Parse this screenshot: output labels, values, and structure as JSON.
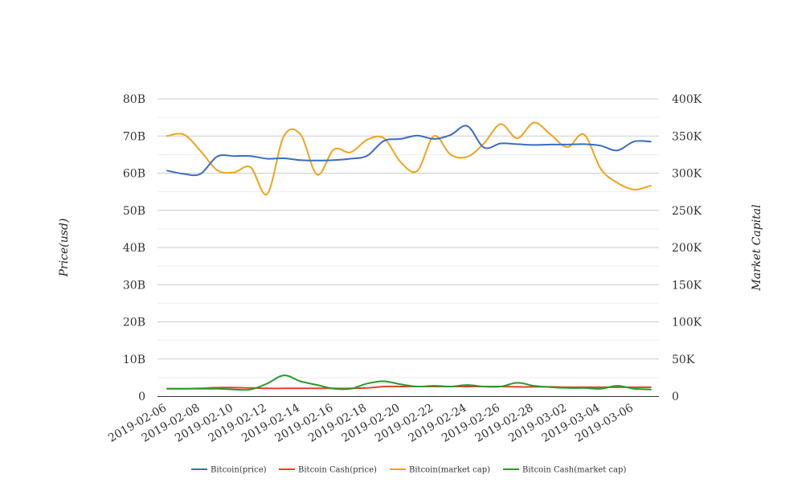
{
  "chart_data": {
    "type": "line",
    "smooth": true,
    "grid": true,
    "legend_position": "bottom",
    "y_left": {
      "label": "Price(usd)",
      "ticks": [
        "0",
        "10B",
        "20B",
        "30B",
        "40B",
        "50B",
        "60B",
        "70B",
        "80B"
      ],
      "range": [
        0,
        80
      ]
    },
    "y_right": {
      "label": "Market Capital",
      "ticks": [
        "0",
        "50K",
        "100K",
        "150K",
        "200K",
        "250K",
        "300K",
        "350K",
        "400K"
      ],
      "range": [
        0,
        400
      ]
    },
    "x_ticks": [
      "2019-02-06",
      "2019-02-08",
      "2019-02-10",
      "2019-02-12",
      "2019-02-14",
      "2019-02-16",
      "2019-02-18",
      "2019-02-20",
      "2019-02-22",
      "2019-02-24",
      "2019-02-26",
      "2019-02-28",
      "2019-03-02",
      "2019-03-04",
      "2019-03-06"
    ],
    "x": [
      "2019-02-06",
      "2019-02-07",
      "2019-02-08",
      "2019-02-09",
      "2019-02-10",
      "2019-02-11",
      "2019-02-12",
      "2019-02-13",
      "2019-02-14",
      "2019-02-15",
      "2019-02-16",
      "2019-02-17",
      "2019-02-18",
      "2019-02-19",
      "2019-02-20",
      "2019-02-21",
      "2019-02-22",
      "2019-02-23",
      "2019-02-24",
      "2019-02-25",
      "2019-02-26",
      "2019-02-27",
      "2019-02-28",
      "2019-03-01",
      "2019-03-02",
      "2019-03-03",
      "2019-03-04",
      "2019-03-05",
      "2019-03-06",
      "2019-03-07"
    ],
    "series": [
      {
        "name": "Bitcoin(price)",
        "axis": "left",
        "color": "#3b6cc2",
        "values": [
          60.7,
          59.8,
          59.8,
          64.5,
          64.6,
          64.6,
          63.9,
          64.0,
          63.5,
          63.4,
          63.5,
          63.9,
          64.7,
          68.7,
          69.2,
          70.1,
          69.2,
          70.3,
          72.7,
          66.9,
          68.0,
          67.8,
          67.6,
          67.7,
          67.7,
          67.8,
          67.4,
          66.1,
          68.5,
          68.5
        ]
      },
      {
        "name": "Bitcoin Cash(price)",
        "axis": "left",
        "color": "#d9452b",
        "values": [
          2.0,
          2.0,
          2.1,
          2.3,
          2.3,
          2.2,
          2.1,
          2.1,
          2.1,
          2.1,
          2.1,
          2.1,
          2.2,
          2.6,
          2.6,
          2.6,
          2.6,
          2.6,
          2.6,
          2.6,
          2.6,
          2.5,
          2.5,
          2.5,
          2.4,
          2.4,
          2.4,
          2.4,
          2.4,
          2.4
        ]
      },
      {
        "name": "Bitcoin(market cap)",
        "axis": "right",
        "color": "#f0a31c",
        "values": [
          350,
          352,
          330,
          304,
          301,
          308,
          272,
          350,
          352,
          298,
          332,
          328,
          345,
          347,
          315,
          303,
          350,
          325,
          322,
          340,
          366,
          347,
          368,
          352,
          335,
          352,
          306,
          287,
          278,
          283
        ]
      },
      {
        "name": "Bitcoin Cash(market cap)",
        "axis": "right",
        "color": "#2a9a2a",
        "values": [
          10,
          10,
          10,
          10,
          9,
          9,
          17,
          28,
          20,
          15,
          10,
          10,
          17,
          20,
          16,
          13,
          14,
          13,
          15,
          13,
          13,
          18,
          14,
          12,
          11,
          11,
          10,
          14,
          10,
          9
        ]
      }
    ]
  }
}
